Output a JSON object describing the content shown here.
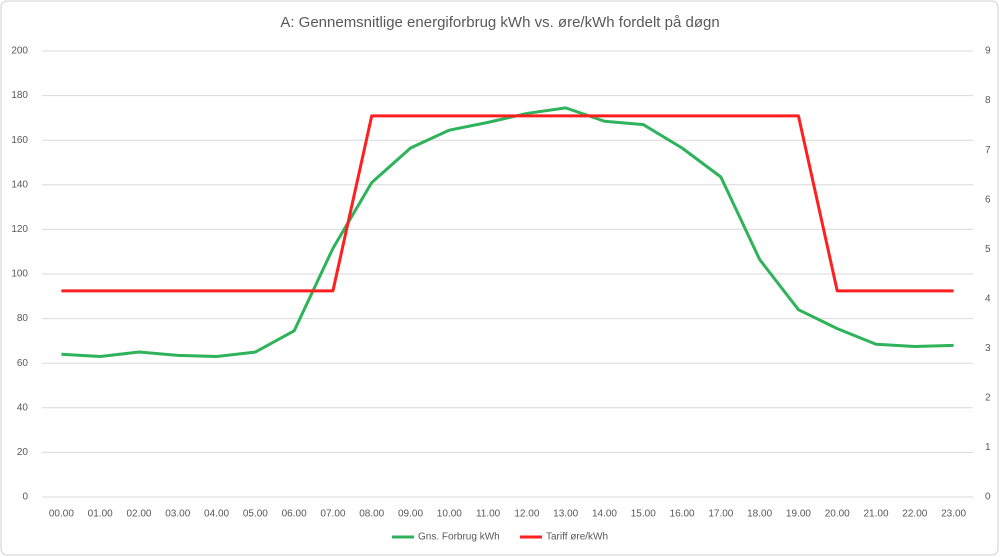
{
  "chart_data": {
    "type": "line",
    "title": "A: Gennemsnitlige energiforbrug kWh vs. øre/kWh fordelt på døgn",
    "categories": [
      "00.00",
      "01.00",
      "02.00",
      "03.00",
      "04.00",
      "05.00",
      "06.00",
      "07.00",
      "08.00",
      "09.00",
      "10.00",
      "11.00",
      "12.00",
      "13.00",
      "14.00",
      "15.00",
      "16.00",
      "17.00",
      "18.00",
      "19.00",
      "20.00",
      "21.00",
      "22.00",
      "23.00"
    ],
    "series": [
      {
        "name": "Gns. Forbrug kWh",
        "color": "#2eb35a",
        "values": [
          64,
          63,
          65,
          63.5,
          63,
          65,
          74.5,
          111.5,
          141,
          156.5,
          164.5,
          168,
          172,
          174.5,
          168.5,
          167,
          156.5,
          143.5,
          106.5,
          84,
          75.5,
          68.5,
          67.5,
          68
        ]
      },
      {
        "name": "Tariff øre/kWh",
        "color": "#ff1f1f",
        "axis": "y2",
        "values": [
          4.16,
          4.16,
          4.16,
          4.16,
          4.16,
          4.16,
          4.16,
          4.16,
          7.69,
          7.69,
          7.69,
          7.69,
          7.69,
          7.69,
          7.69,
          7.69,
          7.69,
          7.69,
          7.69,
          7.69,
          4.16,
          4.16,
          4.16,
          4.16
        ]
      }
    ],
    "ylim": [
      0,
      200
    ],
    "yticks": [
      0,
      20,
      40,
      60,
      80,
      100,
      120,
      140,
      160,
      180,
      200
    ],
    "y2lim": [
      0,
      9
    ],
    "y2ticks": [
      0,
      1,
      2,
      3,
      4,
      5,
      6,
      7,
      8,
      9
    ],
    "grid": true,
    "legend": "bottom"
  }
}
